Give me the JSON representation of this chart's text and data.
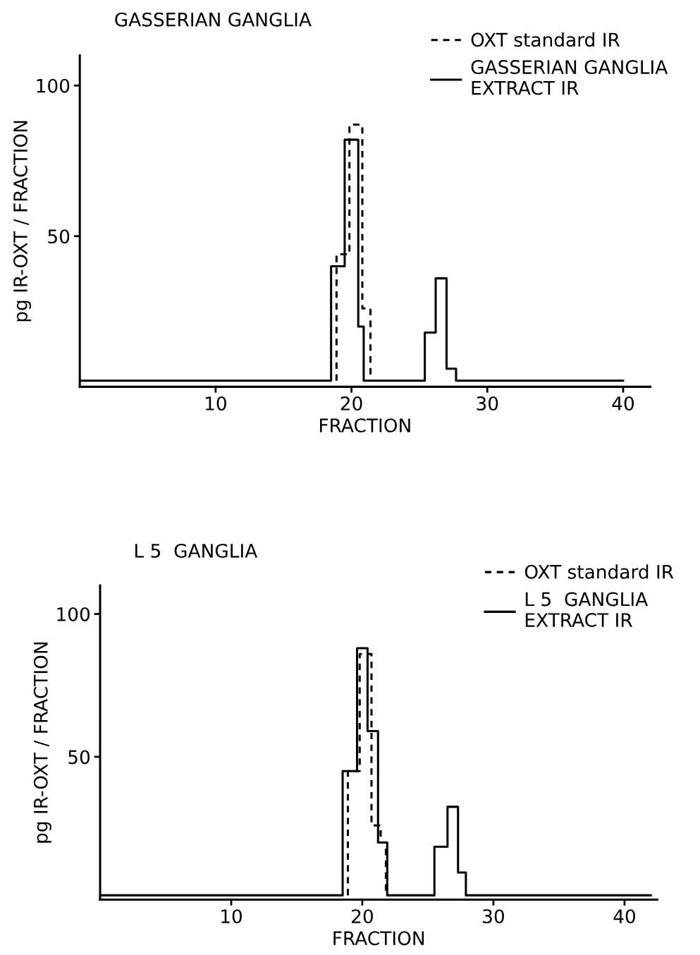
{
  "chart_data": [
    {
      "type": "step",
      "title": "GASSERIAN GANGLIA",
      "xlabel": "FRACTION",
      "ylabel": "pg IR-OXT / FRACTION",
      "xlim": [
        0,
        42
      ],
      "xticks": [
        10,
        20,
        30,
        40
      ],
      "ylim": [
        0,
        110
      ],
      "yticks": [
        50,
        100
      ],
      "grid": false,
      "legend": "top right",
      "series": [
        {
          "name": "OXT standard IR",
          "color": "#000000",
          "line_style": "dashed",
          "x": [
            18.9,
            18.9,
            19.85,
            20.8,
            21.4
          ],
          "values": [
            2,
            44,
            87,
            26,
            2
          ]
        },
        {
          "name": "GASSERIAN GANGLIA\nEXTRACT IR",
          "color": "#000000",
          "line_style": "solid",
          "x": [
            0,
            18.5,
            19.5,
            20.5,
            20.9,
            25.4,
            26.2,
            27.0,
            27.7,
            40
          ],
          "values": [
            2,
            40,
            82,
            20,
            2,
            18,
            36,
            6,
            2,
            2
          ]
        }
      ]
    },
    {
      "type": "step",
      "title": "L 5  GANGLIA",
      "xlabel": "FRACTION",
      "ylabel": "pg IR-OXT / FRACTION",
      "xlim": [
        0,
        42.5
      ],
      "xticks": [
        10,
        20,
        30,
        40
      ],
      "ylim": [
        0,
        110
      ],
      "yticks": [
        50,
        100
      ],
      "grid": false,
      "legend": "top right",
      "series": [
        {
          "name": "OXT standard IR",
          "color": "#000000",
          "line_style": "dashed",
          "x": [
            18.9,
            18.9,
            19.8,
            20.7,
            21.4,
            21.8
          ],
          "values": [
            1.5,
            45,
            86,
            26,
            20,
            1.5
          ]
        },
        {
          "name": "L 5  GANGLIA\nEXTRACT IR",
          "color": "#000000",
          "line_style": "solid",
          "x": [
            0,
            18.5,
            19.6,
            20.4,
            21.2,
            21.9,
            25.5,
            26.5,
            27.3,
            27.9,
            42
          ],
          "values": [
            1.5,
            45,
            88,
            59,
            20,
            1.5,
            18.5,
            32.5,
            9.5,
            1.5,
            1.5
          ]
        }
      ]
    }
  ]
}
